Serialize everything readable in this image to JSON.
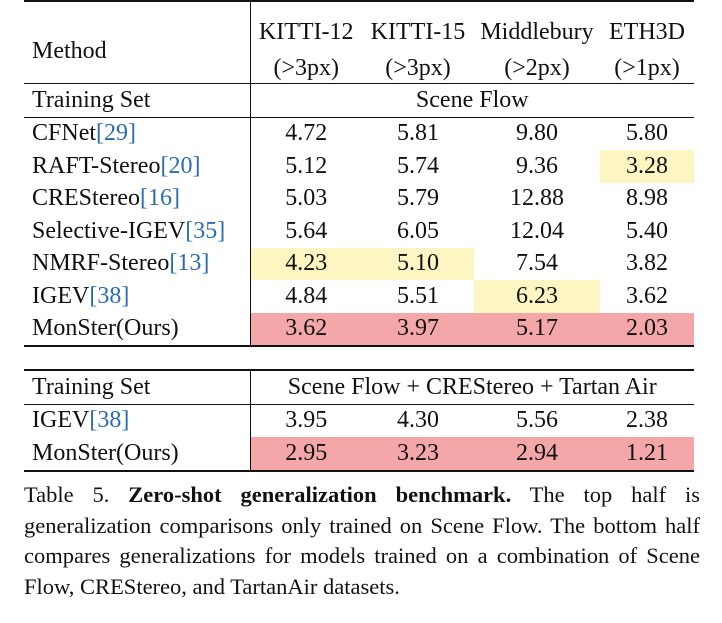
{
  "table": {
    "header": {
      "method_label": "Method",
      "columns": [
        {
          "name": "KITTI-12",
          "metric": "(>3px)"
        },
        {
          "name": "KITTI-15",
          "metric": "(>3px)"
        },
        {
          "name": "Middlebury",
          "metric": "(>2px)"
        },
        {
          "name": "ETH3D",
          "metric": "(>1px)"
        }
      ]
    },
    "section1": {
      "label": "Training Set",
      "value": "Scene Flow",
      "rows": [
        {
          "method": "CFNet",
          "cite": "[29]",
          "values": [
            "4.72",
            "5.81",
            "9.80",
            "5.80"
          ]
        },
        {
          "method": "RAFT-Stereo",
          "cite": "[20]",
          "values": [
            "5.12",
            "5.74",
            "9.36",
            "3.28"
          ]
        },
        {
          "method": "CREStereo",
          "cite": "[16]",
          "values": [
            "5.03",
            "5.79",
            "12.88",
            "8.98"
          ]
        },
        {
          "method": "Selective-IGEV",
          "cite": "[35]",
          "values": [
            "5.64",
            "6.05",
            "12.04",
            "5.40"
          ]
        },
        {
          "method": "NMRF-Stereo",
          "cite": "[13]",
          "values": [
            "4.23",
            "5.10",
            "7.54",
            "3.82"
          ]
        },
        {
          "method": "IGEV",
          "cite": "[38]",
          "values": [
            "4.84",
            "5.51",
            "6.23",
            "3.62"
          ]
        },
        {
          "method": "MonSter(Ours)",
          "cite": "",
          "values": [
            "3.62",
            "3.97",
            "5.17",
            "2.03"
          ]
        }
      ]
    },
    "section2": {
      "label": "Training Set",
      "value": "Scene Flow + CREStereo + Tartan Air",
      "rows": [
        {
          "method": "IGEV",
          "cite": "[38]",
          "values": [
            "3.95",
            "4.30",
            "5.56",
            "2.38"
          ]
        },
        {
          "method": "MonSter(Ours)",
          "cite": "",
          "values": [
            "2.95",
            "3.23",
            "2.94",
            "1.21"
          ]
        }
      ]
    },
    "colors": {
      "best_highlight": "#f4a7a9",
      "second_highlight": "#fdf6c3"
    }
  },
  "caption": {
    "label": "Table 5.",
    "title": "Zero-shot generalization benchmark.",
    "text": "The top half is generalization comparisons only trained on Scene Flow. The bottom half compares generalizations for models trained on a combination of Scene Flow, CREStereo, and TartanAir datasets."
  }
}
